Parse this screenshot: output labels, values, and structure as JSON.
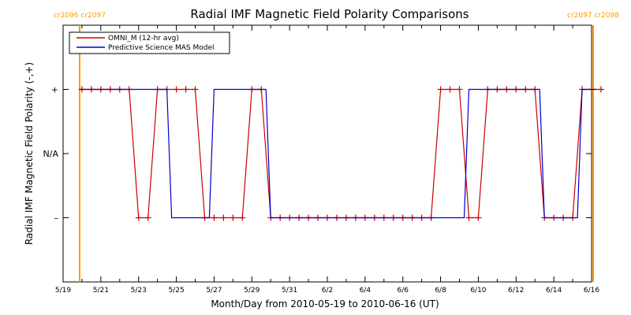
{
  "chart_data": {
    "type": "line",
    "title": "Radial IMF Magnetic Field Polarity Comparisons",
    "xlabel": "Month/Day from 2010-05-19 to 2010-06-16 (UT)",
    "ylabel": "Radial IMF Magnetic Field Polarity (-,+)",
    "x_ticks": [
      "5/19",
      "5/21",
      "5/23",
      "5/25",
      "5/27",
      "5/29",
      "5/31",
      "6/2",
      "6/4",
      "6/6",
      "6/8",
      "6/10",
      "6/12",
      "6/14",
      "6/16"
    ],
    "y_ticks": [
      "+",
      "N/A",
      "–"
    ],
    "ylim": [
      -2,
      2
    ],
    "xlim": [
      "2010-05-19",
      "2010-06-16"
    ],
    "rotation_markers": [
      {
        "date": "2010-05-19T21:00",
        "label": "cr2096 cr2097"
      },
      {
        "date": "2010-06-16T02:00",
        "label": "cr2097 cr2098"
      }
    ],
    "legend": {
      "position": "top-left"
    },
    "series": [
      {
        "name": "OMNI_M (12-hr avg)",
        "color": "#cc0000",
        "marker": "+",
        "points": [
          [
            "2010-05-20T00:00",
            1
          ],
          [
            "2010-05-20T12:00",
            1
          ],
          [
            "2010-05-21T00:00",
            1
          ],
          [
            "2010-05-21T12:00",
            1
          ],
          [
            "2010-05-22T00:00",
            1
          ],
          [
            "2010-05-22T12:00",
            1
          ],
          [
            "2010-05-23T00:00",
            -1
          ],
          [
            "2010-05-23T12:00",
            -1
          ],
          [
            "2010-05-24T00:00",
            1
          ],
          [
            "2010-05-24T12:00",
            1
          ],
          [
            "2010-05-25T00:00",
            1
          ],
          [
            "2010-05-25T12:00",
            1
          ],
          [
            "2010-05-26T00:00",
            1
          ],
          [
            "2010-05-26T12:00",
            -1
          ],
          [
            "2010-05-27T00:00",
            -1
          ],
          [
            "2010-05-27T12:00",
            -1
          ],
          [
            "2010-05-28T00:00",
            -1
          ],
          [
            "2010-05-28T12:00",
            -1
          ],
          [
            "2010-05-29T00:00",
            1
          ],
          [
            "2010-05-29T12:00",
            1
          ],
          [
            "2010-05-30T00:00",
            -1
          ],
          [
            "2010-05-30T12:00",
            -1
          ],
          [
            "2010-05-31T00:00",
            -1
          ],
          [
            "2010-05-31T12:00",
            -1
          ],
          [
            "2010-06-01T00:00",
            -1
          ],
          [
            "2010-06-01T12:00",
            -1
          ],
          [
            "2010-06-02T00:00",
            -1
          ],
          [
            "2010-06-02T12:00",
            -1
          ],
          [
            "2010-06-03T00:00",
            -1
          ],
          [
            "2010-06-03T12:00",
            -1
          ],
          [
            "2010-06-04T00:00",
            -1
          ],
          [
            "2010-06-04T12:00",
            -1
          ],
          [
            "2010-06-05T00:00",
            -1
          ],
          [
            "2010-06-05T12:00",
            -1
          ],
          [
            "2010-06-06T00:00",
            -1
          ],
          [
            "2010-06-06T12:00",
            -1
          ],
          [
            "2010-06-07T00:00",
            -1
          ],
          [
            "2010-06-07T12:00",
            -1
          ],
          [
            "2010-06-08T00:00",
            1
          ],
          [
            "2010-06-08T12:00",
            1
          ],
          [
            "2010-06-09T00:00",
            1
          ],
          [
            "2010-06-09T12:00",
            -1
          ],
          [
            "2010-06-10T00:00",
            -1
          ],
          [
            "2010-06-10T12:00",
            1
          ],
          [
            "2010-06-11T00:00",
            1
          ],
          [
            "2010-06-11T12:00",
            1
          ],
          [
            "2010-06-12T00:00",
            1
          ],
          [
            "2010-06-12T12:00",
            1
          ],
          [
            "2010-06-13T00:00",
            1
          ],
          [
            "2010-06-13T12:00",
            -1
          ],
          [
            "2010-06-14T00:00",
            -1
          ],
          [
            "2010-06-14T12:00",
            -1
          ],
          [
            "2010-06-15T00:00",
            -1
          ],
          [
            "2010-06-15T12:00",
            1
          ],
          [
            "2010-06-16T00:00",
            1
          ],
          [
            "2010-06-16T12:00",
            1
          ]
        ]
      },
      {
        "name": "Predictive Science MAS Model",
        "color": "#0000cc",
        "points": [
          [
            "2010-05-19T21:00",
            1
          ],
          [
            "2010-05-24T12:00",
            1
          ],
          [
            "2010-05-24T18:00",
            -1
          ],
          [
            "2010-05-26T18:00",
            -1
          ],
          [
            "2010-05-27T00:00",
            1
          ],
          [
            "2010-05-29T18:00",
            1
          ],
          [
            "2010-05-30T00:00",
            -1
          ],
          [
            "2010-06-09T06:00",
            -1
          ],
          [
            "2010-06-09T12:00",
            1
          ],
          [
            "2010-06-13T06:00",
            1
          ],
          [
            "2010-06-13T12:00",
            -1
          ],
          [
            "2010-06-15T06:00",
            -1
          ],
          [
            "2010-06-15T12:00",
            1
          ],
          [
            "2010-06-16T06:00",
            1
          ]
        ]
      }
    ]
  }
}
